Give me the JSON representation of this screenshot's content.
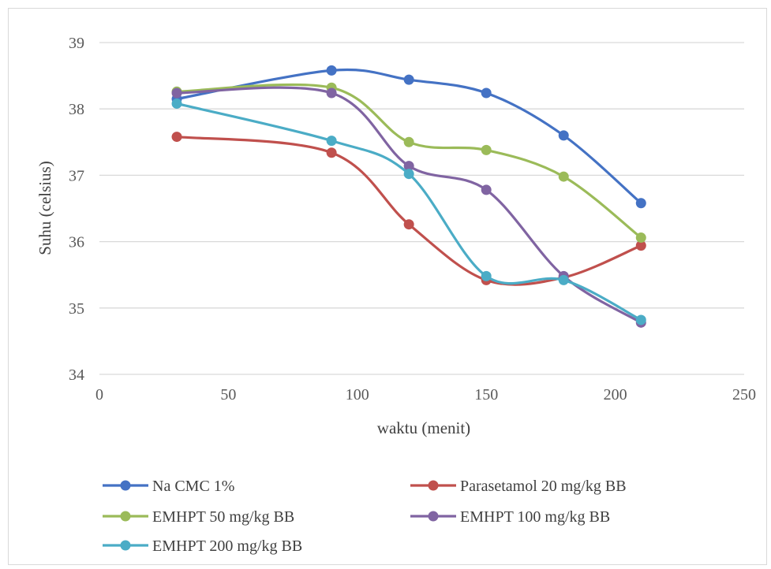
{
  "chart_data": {
    "type": "line",
    "title": "",
    "xlabel": "waktu (menit)",
    "ylabel": "Suhu (celsius)",
    "xlim": [
      0,
      250
    ],
    "ylim": [
      34,
      39
    ],
    "x_ticks": [
      0,
      50,
      100,
      150,
      200,
      250
    ],
    "y_ticks": [
      34,
      35,
      36,
      37,
      38,
      39
    ],
    "grid": "horizontal",
    "legend_position": "bottom",
    "x": [
      30,
      90,
      120,
      150,
      180,
      210
    ],
    "series": [
      {
        "name": "Na CMC 1%",
        "color": "#4472c4",
        "values": [
          38.15,
          38.58,
          38.44,
          38.24,
          37.6,
          36.58
        ]
      },
      {
        "name": "Parasetamol 20 mg/kg BB",
        "color": "#c0504d",
        "values": [
          37.58,
          37.34,
          36.26,
          35.42,
          35.46,
          35.94
        ]
      },
      {
        "name": "EMHPT 50 mg/kg BB",
        "color": "#9bbb59",
        "values": [
          38.26,
          38.32,
          37.5,
          37.38,
          36.98,
          36.06
        ]
      },
      {
        "name": "EMHPT 100 mg/kg BB",
        "color": "#8064a2",
        "values": [
          38.24,
          38.24,
          37.14,
          36.78,
          35.48,
          34.78
        ]
      },
      {
        "name": "EMHPT 200 mg/kg BB",
        "color": "#4bacc6",
        "values": [
          38.08,
          37.52,
          37.02,
          35.48,
          35.42,
          34.82
        ]
      }
    ]
  }
}
